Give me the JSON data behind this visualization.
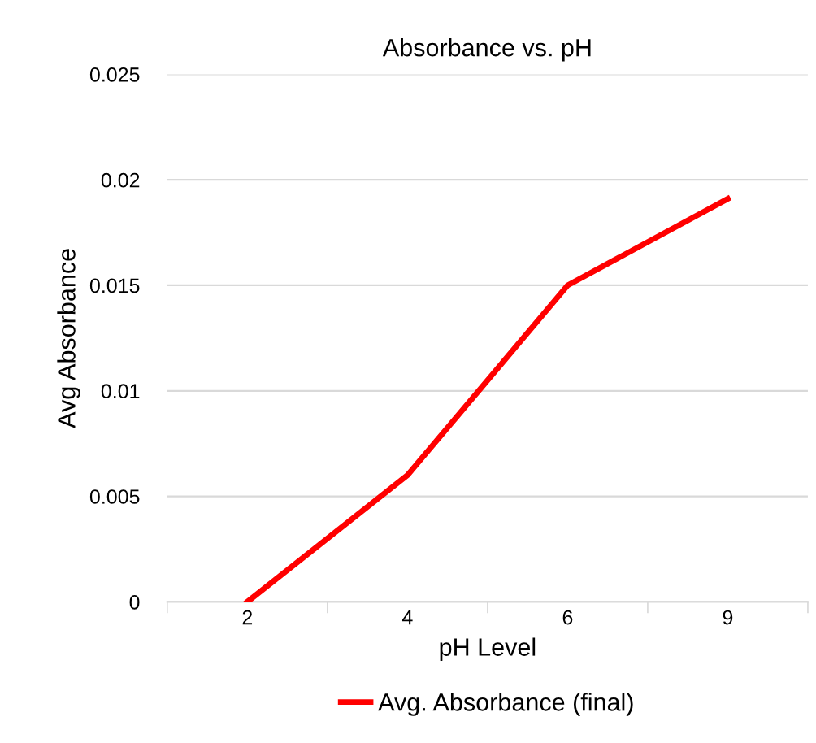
{
  "chart_data": {
    "type": "line",
    "title": "Absorbance vs. pH",
    "xlabel": "pH Level",
    "ylabel": "Avg Absorbance",
    "categories": [
      "2",
      "4",
      "6",
      "9"
    ],
    "series": [
      {
        "name": "Avg. Absorbance (final)",
        "color": "#ff0000",
        "values": [
          0,
          0.006,
          0.015,
          0.0191
        ]
      }
    ],
    "ylim": [
      0,
      0.025
    ],
    "yticks": [
      0,
      0.005,
      0.01,
      0.015,
      0.02,
      0.025
    ],
    "grid": "y",
    "legend": "bottom",
    "marker": "none"
  }
}
